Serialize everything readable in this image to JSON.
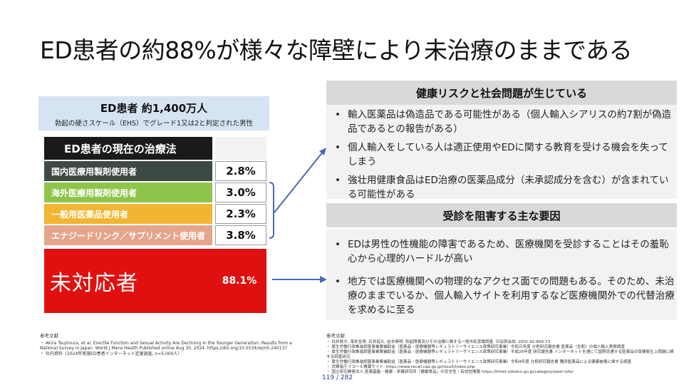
{
  "title": "ED患者の約88%が様々な障壁により未治療のままである",
  "summary": {
    "headline": "ED患者 約1,400万人",
    "subtext": "勃起の硬さスケール（EHS）でグレード1又は2と判定された男性"
  },
  "table": {
    "header": "ED患者の現在の治療法",
    "rows": [
      {
        "label": "国内医療用製剤使用者",
        "value": "2.8%",
        "color": "#3d4a44"
      },
      {
        "label": "海外医療用製剤使用者",
        "value": "3.0%",
        "color": "#8fc44a"
      },
      {
        "label": "一般用医薬品使用者",
        "value": "2.3%",
        "color": "#f0b531"
      },
      {
        "label": "エナジードリンク／サプリメント使用者",
        "value": "3.8%",
        "color": "#e5a58c"
      }
    ],
    "untreated": {
      "label": "未対応者",
      "value": "88.1%",
      "color": "#e01010"
    }
  },
  "panel1": {
    "header": "健康リスクと社会問題が生じている",
    "bullets": [
      "輸入医薬品は偽造品である可能性がある（個人輸入シアリスの約7割が偽造品であるとの報告がある）",
      "個人輸入をしている人は適正使用やEDに関する教育を受ける機会を失ってしまう",
      "強壮用健康食品はED治療の医薬品成分（未承認成分を含む）が含まれている可能性がある"
    ]
  },
  "panel2": {
    "header": "受診を阻害する主な要因",
    "bullets": [
      "EDは男性の性機能の障害であるため、医療機関を受診することはその羞恥心から心理的ハードルが高い",
      "地方では医療機関への物理的なアクセス面での問題もある。そのため、未治療のままでいるか、個人輸入サイトを利用するなど医療機関外での代替治療を求めるに至る"
    ]
  },
  "refs_left": {
    "title": "参考文献",
    "items": [
      "・ Akira Tsujimura, et al. Erectile Function and Sexual Activity Are Declining in the Younger Generation: Results from a National Survey in Japan. World J Mens Health Published online Aug 30, 2024. https://doi.org/10.5534/wjmh.240137",
      "・ 社内資料（2024年実施ED患者インターネット定量調査, n=5,000人）"
    ]
  },
  "refs_right": {
    "title": "参考文献",
    "items": [
      "・ 白井將文, 滝本至得, 石井延久, 岩本晃明. 勃起障害及びその治療に関する一般市民意識調査. 日泌尿会誌. 2001;92:666-73.",
      "・ 厚生労働行政推進調査事業費補助金（医薬品・医療機器等レギュラトリーサイエンス政策研究事業）令和元年度 分担研究報告書 医薬品（全般）の個人輸入実態調査",
      "・ 厚生労働行政推進調査事業費補助金（医薬品・医療機器等レギュラトリーサイエンス政策研究事業）平成26年度 研究報告書 インターネットを通じて国際流通する医薬品の保健衛生上問題に関する調査研究",
      "・ 厚生労働行政推進調査事業費補助金（医薬品・医療機器等レギュラトリーサイエンス政策研究事業）令和4年度 分担研究報告書 種添医薬品による健康被害に関する調査",
      "・ 消費者庁リコール情報サイト: https://www.recall.caa.go.jp/result/index.php",
      "・ 国立研究開発法人 医薬基盤・健康・栄養研究所「健康食品」の安全性・有効性情報 https://hfnet.nibiohn.go.jp/category/alert-info/"
    ]
  },
  "page_number": "119 / 282"
}
